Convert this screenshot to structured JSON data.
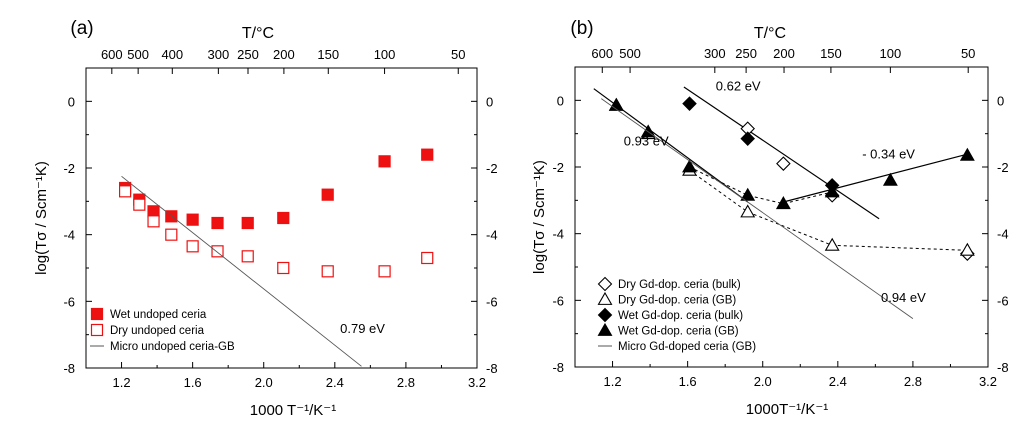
{
  "chart_data": [
    {
      "panel_label": "(a)",
      "type": "scatter",
      "xlabel": "1000 T⁻¹/K⁻¹",
      "ylabel": "log(Tσ / Scm⁻¹K)",
      "top_axis_label": "T/°C",
      "xlim": [
        1.0,
        3.2
      ],
      "ylim": [
        -8,
        1
      ],
      "x_ticks": [
        "1.2",
        "1.6",
        "2.0",
        "2.4",
        "2.8",
        "3.2"
      ],
      "y_ticks": [
        "0",
        "-2",
        "-4",
        "-6",
        "-8"
      ],
      "right_y_ticks": [
        "0",
        "-2",
        "-4",
        "-6",
        "-8"
      ],
      "top_ticks": [
        {
          "label": "600",
          "celsius": 600
        },
        {
          "label": "500",
          "celsius": 500
        },
        {
          "label": "400",
          "celsius": 400
        },
        {
          "label": "300",
          "celsius": 300
        },
        {
          "label": "250",
          "celsius": 250
        },
        {
          "label": "200",
          "celsius": 200
        },
        {
          "label": "150",
          "celsius": 150
        },
        {
          "label": "100",
          "celsius": 100
        },
        {
          "label": "50",
          "celsius": 50
        }
      ],
      "series": [
        {
          "name": "Wet undoped ceria",
          "marker": "square-filled",
          "color": "#ee1111",
          "x": [
            1.22,
            1.3,
            1.38,
            1.48,
            1.6,
            1.74,
            1.91,
            2.11,
            2.36,
            2.68,
            2.92
          ],
          "y": [
            -2.6,
            -2.95,
            -3.3,
            -3.45,
            -3.55,
            -3.65,
            -3.65,
            -3.5,
            -2.8,
            -1.8,
            -1.6
          ]
        },
        {
          "name": "Dry undoped ceria",
          "marker": "square-open",
          "color": "#ee1111",
          "x": [
            1.22,
            1.3,
            1.38,
            1.48,
            1.6,
            1.74,
            1.91,
            2.11,
            2.36,
            2.68,
            2.92
          ],
          "y": [
            -2.7,
            -3.1,
            -3.6,
            -4.0,
            -4.35,
            -4.5,
            -4.65,
            -5.0,
            -5.1,
            -5.1,
            -4.7
          ]
        },
        {
          "name": "Micro undoped ceria-GB",
          "marker": "line",
          "color": "#555555",
          "x": [
            1.2,
            2.55
          ],
          "y": [
            -2.25,
            -7.95
          ]
        }
      ],
      "annotations": [
        {
          "text": "0.79 eV",
          "x": 2.43,
          "y": -6.95
        }
      ],
      "legend_position": "bottom-left"
    },
    {
      "panel_label": "(b)",
      "type": "scatter",
      "xlabel": "1000T⁻¹/K⁻¹",
      "ylabel": "log(Tσ / Scm⁻¹K)",
      "top_axis_label": "T/°C",
      "xlim": [
        1.0,
        3.2
      ],
      "ylim": [
        -8,
        1
      ],
      "x_ticks": [
        "1.2",
        "1.6",
        "2.0",
        "2.4",
        "2.8",
        "3.2"
      ],
      "y_ticks": [
        "0",
        "-2",
        "-4",
        "-6",
        "-8"
      ],
      "right_y_ticks": [
        "0",
        "-2",
        "-4",
        "-6",
        "-8"
      ],
      "top_ticks": [
        {
          "label": "600",
          "celsius": 600
        },
        {
          "label": "500",
          "celsius": 500
        },
        {
          "label": "300",
          "celsius": 300
        },
        {
          "label": "250",
          "celsius": 250
        },
        {
          "label": "200",
          "celsius": 200
        },
        {
          "label": "150",
          "celsius": 150
        },
        {
          "label": "100",
          "celsius": 100
        },
        {
          "label": "50",
          "celsius": 50
        }
      ],
      "series": [
        {
          "name": "Dry Gd-dop. ceria (bulk)",
          "marker": "diamond-open",
          "color": "#000000",
          "x": [
            1.92,
            2.11,
            2.37,
            3.09
          ],
          "y": [
            -0.85,
            -1.9,
            -2.85,
            -4.6
          ]
        },
        {
          "name": "Dry Gd-dop. ceria (GB)",
          "marker": "triangle-open",
          "color": "#000000",
          "x": [
            1.22,
            1.39,
            1.61,
            1.92,
            2.37,
            3.09
          ],
          "y": [
            -0.15,
            -1.0,
            -2.1,
            -3.35,
            -4.35,
            -4.5
          ]
        },
        {
          "name": "Wet Gd-dop. ceria (bulk)",
          "marker": "diamond-filled",
          "color": "#000000",
          "x": [
            1.61,
            1.92,
            2.37
          ],
          "y": [
            -0.1,
            -1.15,
            -2.55
          ]
        },
        {
          "name": "Wet Gd-dop. ceria (GB)",
          "marker": "triangle-filled",
          "color": "#000000",
          "x": [
            1.22,
            1.39,
            1.61,
            1.92,
            2.11,
            2.37,
            2.68,
            3.09
          ],
          "y": [
            -0.15,
            -0.95,
            -2.0,
            -2.85,
            -3.1,
            -2.75,
            -2.4,
            -1.65
          ]
        },
        {
          "name": "Micro Gd-doped ceria (GB)",
          "marker": "line",
          "color": "#555555",
          "x": [
            1.14,
            2.8
          ],
          "y": [
            0.05,
            -6.55
          ]
        }
      ],
      "fit_lines": [
        {
          "x": [
            1.58,
            2.62
          ],
          "y": [
            0.4,
            -3.55
          ],
          "style": "solid"
        },
        {
          "x": [
            1.1,
            1.92
          ],
          "y": [
            0.35,
            -3.05
          ],
          "style": "solid"
        },
        {
          "x": [
            2.11,
            3.1
          ],
          "y": [
            -3.05,
            -1.6
          ],
          "style": "solid"
        },
        {
          "x": [
            1.61,
            1.92,
            2.11,
            2.37
          ],
          "y": [
            -2.0,
            -2.85,
            -3.1,
            -2.75
          ],
          "style": "dotted"
        },
        {
          "x": [
            1.61,
            1.92,
            2.37,
            3.09
          ],
          "y": [
            -2.1,
            -3.35,
            -4.35,
            -4.5
          ],
          "style": "dotted"
        }
      ],
      "annotations": [
        {
          "text": "0.62 eV",
          "x": 1.75,
          "y": 0.3
        },
        {
          "text": "0.93 eV",
          "x": 1.26,
          "y": -1.35
        },
        {
          "text": "- 0.34 eV",
          "x": 2.53,
          "y": -1.75
        },
        {
          "text": "0.94 eV",
          "x": 2.63,
          "y": -6.05
        }
      ],
      "legend_position": "bottom-left"
    }
  ]
}
